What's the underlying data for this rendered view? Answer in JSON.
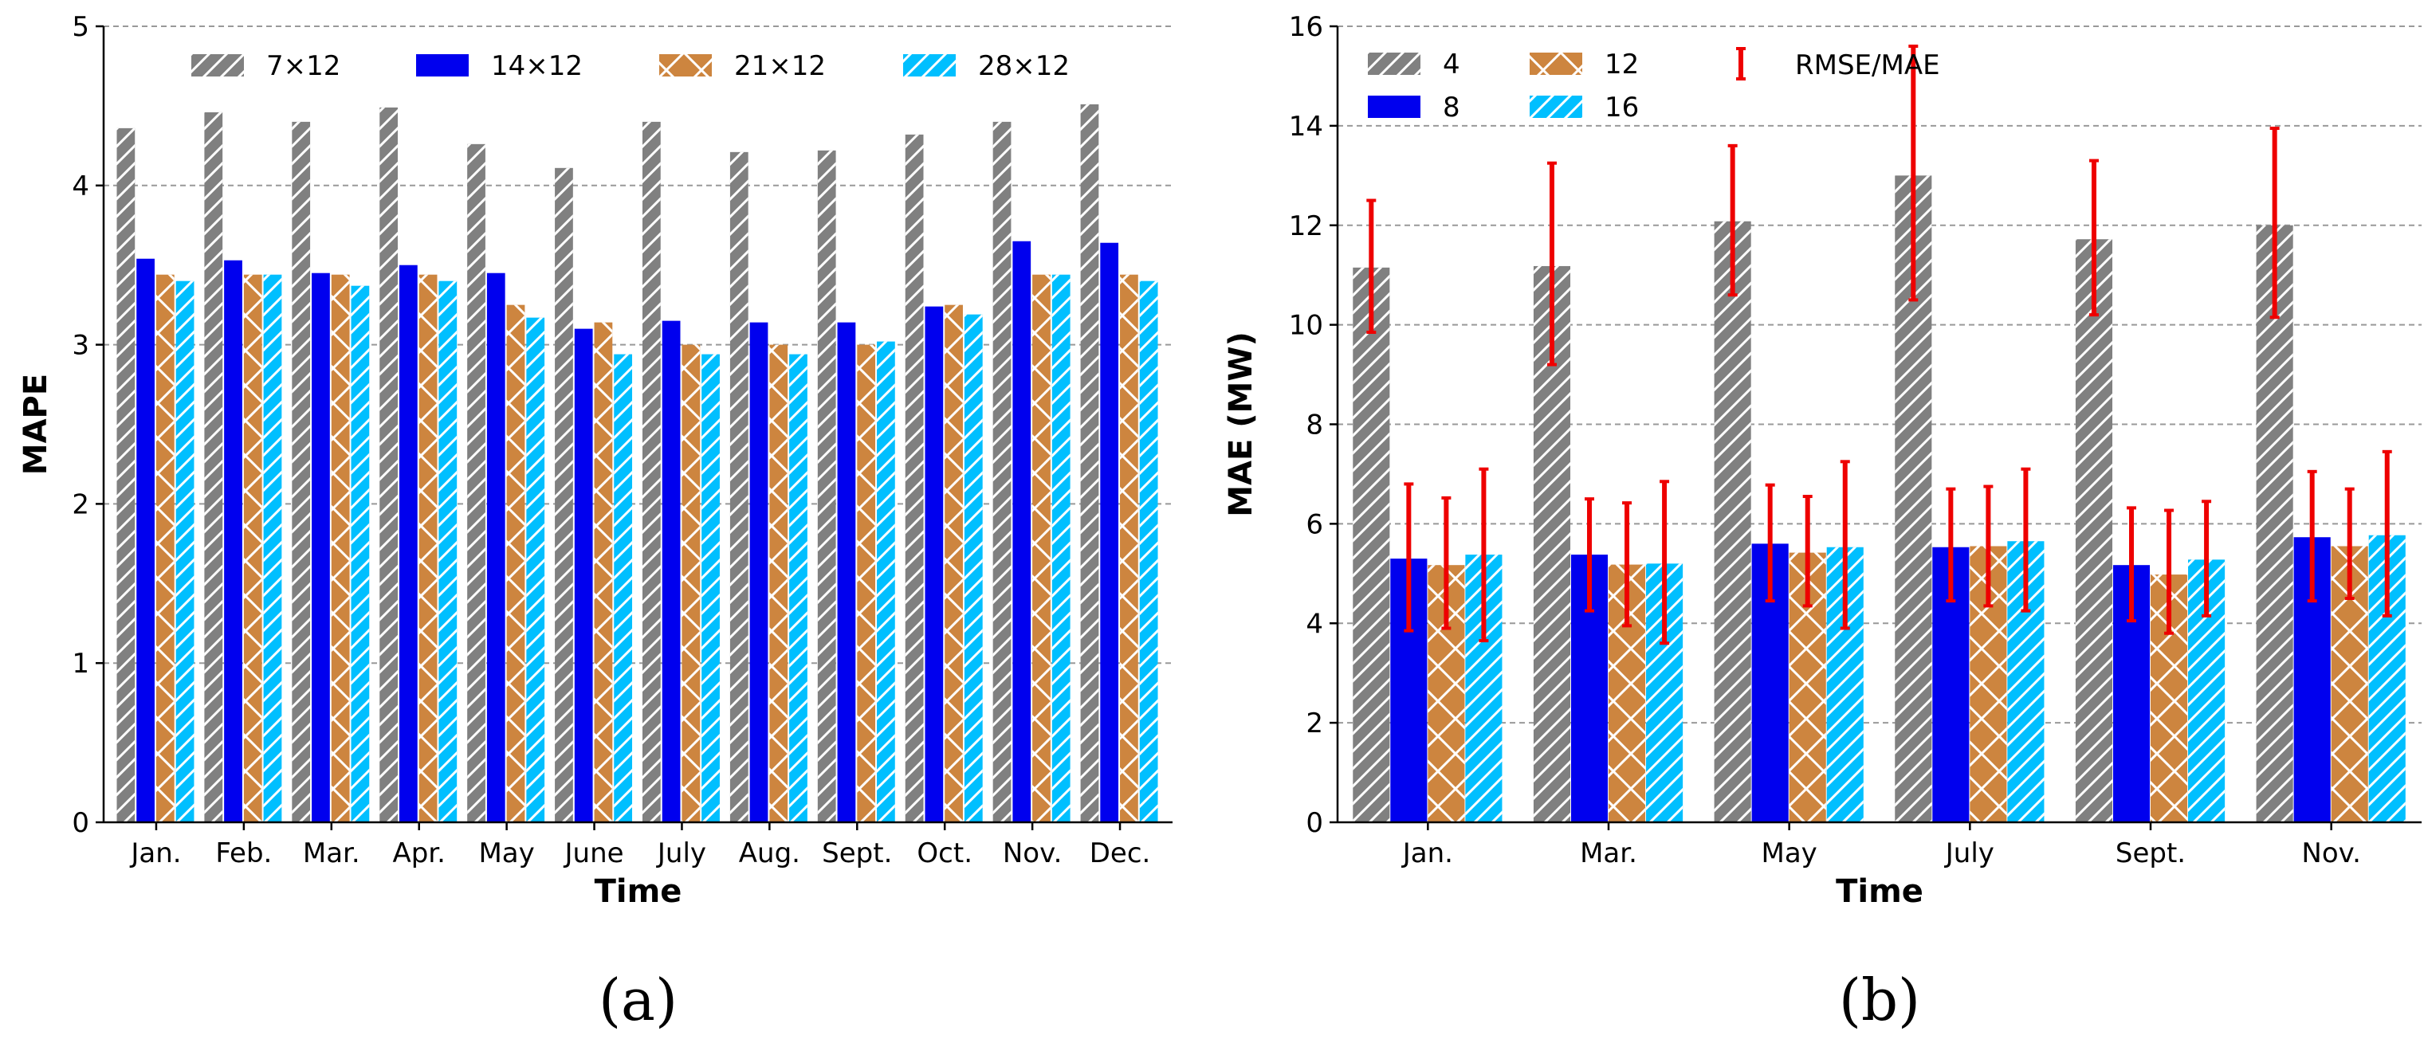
{
  "chart_data": [
    {
      "type": "bar",
      "panel_label": "(a)",
      "xlabel": "Time",
      "ylabel": "MAPE",
      "ylim": [
        0,
        5
      ],
      "yticks": [
        "0",
        "1",
        "2",
        "3",
        "4",
        "5"
      ],
      "grid": "horizontal dashed",
      "legend_position": "top",
      "categories": [
        "Jan.",
        "Feb.",
        "Mar.",
        "Apr.",
        "May",
        "June",
        "July",
        "Aug.",
        "Sept.",
        "Oct.",
        "Nov.",
        "Dec."
      ],
      "series": [
        {
          "name": "7×12",
          "color": "#808080",
          "pattern": "diag",
          "values": [
            4.36,
            4.46,
            4.4,
            4.49,
            4.26,
            4.11,
            4.4,
            4.21,
            4.22,
            4.32,
            4.4,
            4.51
          ]
        },
        {
          "name": "14×12",
          "color": "#0000ee",
          "pattern": "none",
          "values": [
            3.54,
            3.53,
            3.45,
            3.5,
            3.45,
            3.1,
            3.15,
            3.14,
            3.14,
            3.24,
            3.65,
            3.64
          ]
        },
        {
          "name": "21×12",
          "color": "#cd853f",
          "pattern": "cross",
          "values": [
            3.44,
            3.44,
            3.44,
            3.44,
            3.25,
            3.14,
            3.0,
            3.0,
            3.0,
            3.25,
            3.44,
            3.44
          ]
        },
        {
          "name": "28×12",
          "color": "#00bfff",
          "pattern": "diag",
          "values": [
            3.4,
            3.44,
            3.37,
            3.4,
            3.17,
            2.94,
            2.94,
            2.94,
            3.02,
            3.19,
            3.44,
            3.4
          ]
        }
      ]
    },
    {
      "type": "bar",
      "panel_label": "(b)",
      "xlabel": "Time",
      "ylabel": "MAE (MW)",
      "ylim": [
        0,
        16
      ],
      "yticks": [
        "0",
        "2",
        "4",
        "6",
        "8",
        "10",
        "12",
        "14",
        "16"
      ],
      "grid": "horizontal dashed",
      "legend_position": "top-left",
      "errorbar_label": "RMSE/MAE",
      "errorbar_color": "#ee0000",
      "categories": [
        "Jan.",
        "Mar.",
        "May",
        "July",
        "Sept.",
        "Nov."
      ],
      "series": [
        {
          "name": "4",
          "color": "#808080",
          "pattern": "diag",
          "values": [
            11.15,
            11.18,
            12.08,
            13.0,
            11.72,
            12.0
          ],
          "err_low": [
            9.85,
            9.2,
            10.6,
            10.5,
            10.2,
            10.15
          ],
          "err_high": [
            12.5,
            13.25,
            13.6,
            15.6,
            13.3,
            13.95
          ]
        },
        {
          "name": "8",
          "color": "#0000ee",
          "pattern": "none",
          "values": [
            5.3,
            5.38,
            5.6,
            5.53,
            5.17,
            5.73
          ],
          "err_low": [
            3.85,
            4.25,
            4.45,
            4.45,
            4.05,
            4.45
          ],
          "err_high": [
            6.8,
            6.5,
            6.78,
            6.7,
            6.32,
            7.05
          ]
        },
        {
          "name": "12",
          "color": "#cd853f",
          "pattern": "cross",
          "values": [
            5.17,
            5.18,
            5.42,
            5.55,
            4.98,
            5.55
          ],
          "err_low": [
            3.9,
            3.95,
            4.35,
            4.35,
            3.8,
            4.5
          ],
          "err_high": [
            6.52,
            6.42,
            6.55,
            6.75,
            6.27,
            6.7
          ]
        },
        {
          "name": "16",
          "color": "#00bfff",
          "pattern": "diag",
          "values": [
            5.38,
            5.2,
            5.53,
            5.65,
            5.28,
            5.77
          ],
          "err_low": [
            3.65,
            3.6,
            3.9,
            4.25,
            4.15,
            4.15
          ],
          "err_high": [
            7.1,
            6.85,
            7.25,
            7.1,
            6.45,
            7.45
          ]
        }
      ]
    }
  ]
}
